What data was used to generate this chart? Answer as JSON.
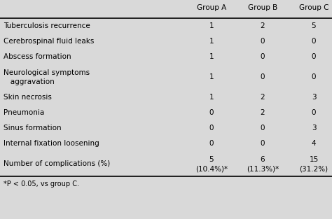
{
  "col_headers": [
    "Group A",
    "Group B",
    "Group C"
  ],
  "row_labels": [
    "Tuberculosis recurrence",
    "Cerebrospinal fluid leaks",
    "Abscess formation",
    "Neurological symptoms\n   aggravation",
    "Skin necrosis",
    "Pneumonia",
    "Sinus formation",
    "Internal fixation loosening",
    "Number of complications (%)"
  ],
  "row_labels_line2": [
    "",
    "",
    "",
    "",
    "",
    "",
    "",
    "",
    ""
  ],
  "values_a": [
    "1",
    "1",
    "1",
    "1",
    "1",
    "0",
    "0",
    "0",
    "5"
  ],
  "values_b": [
    "2",
    "0",
    "0",
    "0",
    "2",
    "2",
    "0",
    "0",
    "6"
  ],
  "values_c": [
    "5",
    "0",
    "0",
    "0",
    "3",
    "0",
    "3",
    "4",
    "15"
  ],
  "values_a2": [
    "",
    "",
    "",
    "",
    "",
    "",
    "",
    "",
    "(10.4%)*"
  ],
  "values_b2": [
    "",
    "",
    "",
    "",
    "",
    "",
    "",
    "",
    "(11.3%)*"
  ],
  "values_c2": [
    "",
    "",
    "",
    "",
    "",
    "",
    "",
    "",
    "(31.2%)"
  ],
  "footnote": "*P < 0.05, vs group C.",
  "bg_color": "#d9d9d9",
  "text_color": "#000000",
  "font_size": 7.5,
  "header_font_size": 7.5
}
